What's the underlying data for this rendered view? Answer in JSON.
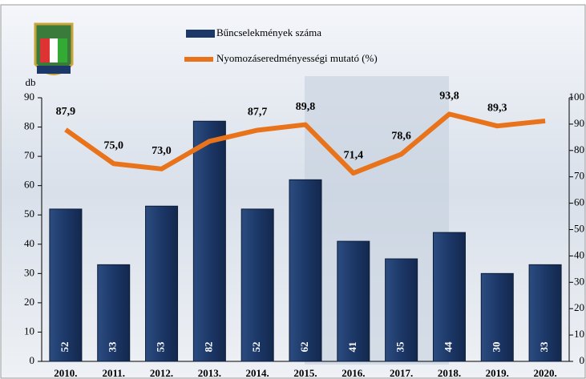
{
  "chart_data": {
    "type": "bar-line",
    "categories": [
      "2010.",
      "2011.",
      "2012.",
      "2013.",
      "2014.",
      "2015.",
      "2016.",
      "2017.",
      "2018.",
      "2019.",
      "2020."
    ],
    "y_label": "db",
    "series": [
      {
        "name": "Bűncselekmények száma",
        "type": "bar",
        "color": "#1c3868",
        "values": [
          52,
          33,
          53,
          82,
          52,
          62,
          41,
          35,
          44,
          30,
          33
        ]
      },
      {
        "name": "Nyomozáseredményességi mutató (%)",
        "type": "line",
        "axis": "y2",
        "color": "#e8731a",
        "values": [
          87.9,
          75.0,
          73.0,
          83.5,
          87.7,
          89.8,
          71.4,
          78.6,
          93.8,
          89.3,
          91.2
        ],
        "value_labels": [
          "87,9",
          "75,0",
          "73,0",
          null,
          "87,7",
          "89,8",
          "71,4",
          "78,6",
          "93,8",
          "89,3",
          null
        ]
      }
    ],
    "ylim": [
      0,
      90
    ],
    "yticks": [
      0,
      10,
      20,
      30,
      40,
      50,
      60,
      70,
      80,
      90
    ],
    "y2lim": [
      0,
      100
    ],
    "y2ticks": [
      0,
      10,
      20,
      30,
      40,
      50,
      60,
      70,
      80,
      90,
      100
    ]
  }
}
